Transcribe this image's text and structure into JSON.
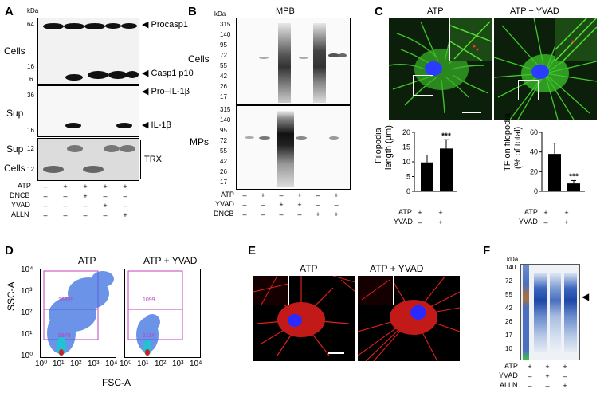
{
  "panels": {
    "A": {
      "letter": "A",
      "kda": "kDa",
      "row_labels": [
        "Cells",
        "Sup",
        "Sup",
        "Cells"
      ],
      "markers_top": [
        "64",
        "6",
        "16"
      ],
      "markers_mid": [
        "36",
        "16"
      ],
      "markers_bot": [
        "12",
        "12"
      ],
      "bands": [
        "Procasp1",
        "Casp1 p10",
        "Pro–IL-1β",
        "IL-1β",
        "TRX"
      ],
      "treatments": [
        "ATP",
        "DNCB",
        "YVAD",
        "ALLN"
      ],
      "signs": [
        [
          "–",
          "+",
          "+",
          "+",
          "+"
        ],
        [
          "–",
          "–",
          "+",
          "–",
          "–"
        ],
        [
          "–",
          "–",
          "–",
          "+",
          "–"
        ],
        [
          "–",
          "–",
          "–",
          "–",
          "+"
        ]
      ]
    },
    "B": {
      "letter": "B",
      "title": "MPB",
      "kda": "kDa",
      "row_labels": [
        "Cells",
        "MPs"
      ],
      "markers_cells": [
        "315",
        "140",
        "95",
        "72",
        "55",
        "42",
        "26",
        "17"
      ],
      "markers_mps": [
        "315",
        "140",
        "95",
        "72",
        "55",
        "42",
        "26",
        "17"
      ],
      "treatments": [
        "ATP",
        "YVAD",
        "DNCB"
      ],
      "signs": [
        [
          "–",
          "+",
          "–",
          "+",
          "–",
          "+"
        ],
        [
          "–",
          "–",
          "+",
          "+",
          "–",
          "–"
        ],
        [
          "–",
          "–",
          "–",
          "–",
          "+",
          "+"
        ]
      ]
    },
    "C": {
      "letter": "C",
      "image_titles": [
        "ATP",
        "ATP + YVAD"
      ],
      "charts": [
        {
          "ylabel_lines": [
            "Filopodia",
            "length (µm)"
          ],
          "ticks": [
            "0",
            "5",
            "10",
            "15",
            "20"
          ],
          "significance": "***",
          "treatments": [
            "ATP",
            "YVAD"
          ],
          "signs": [
            [
              "+",
              "+"
            ],
            [
              "–",
              "+"
            ]
          ]
        },
        {
          "ylabel_lines": [
            "TF on filopodia",
            "(% of total)"
          ],
          "ticks": [
            "0",
            "20",
            "40",
            "60"
          ],
          "significance": "***",
          "treatments": [
            "ATP",
            "YVAD"
          ],
          "signs": [
            [
              "+",
              "+"
            ],
            [
              "–",
              "+"
            ]
          ]
        }
      ]
    },
    "D": {
      "letter": "D",
      "plot_titles": [
        "ATP",
        "ATP + YVAD"
      ],
      "ylabel": "SSC-A",
      "xlabel": "FSC-A",
      "y_ticks": [
        "10⁴",
        "10³",
        "10²",
        "10¹",
        "10⁰"
      ],
      "x_ticks_1": [
        "10⁰",
        "10¹",
        "10²",
        "10³",
        "10⁴"
      ],
      "x_ticks_2": [
        "10⁰",
        "10¹",
        "10²",
        "10³",
        "10⁴"
      ],
      "gate_counts_atp": [
        "16939",
        "5978"
      ],
      "gate_counts_yvad": [
        "1099",
        "5114"
      ]
    },
    "E": {
      "letter": "E",
      "image_titles": [
        "ATP",
        "ATP + YVAD"
      ]
    },
    "F": {
      "letter": "F",
      "kda": "kDa",
      "markers": [
        "140",
        "72",
        "55",
        "42",
        "26",
        "17",
        "10"
      ],
      "treatments": [
        "ATP",
        "YVAD",
        "ALLN"
      ],
      "signs": [
        [
          "+",
          "+",
          "+"
        ],
        [
          "–",
          "+",
          "–"
        ],
        [
          "–",
          "–",
          "+"
        ]
      ]
    }
  },
  "chart_data": [
    {
      "type": "bar",
      "categories": [
        "ATP",
        "ATP + YVAD"
      ],
      "values": [
        9.8,
        14.5
      ],
      "errors": [
        2.5,
        3.0
      ],
      "ylabel": "Filopodia length (µm)",
      "ylim": [
        0,
        20
      ]
    },
    {
      "type": "bar",
      "categories": [
        "ATP",
        "ATP + YVAD"
      ],
      "values": [
        38,
        8
      ],
      "errors": [
        11,
        3
      ],
      "ylabel": "TF on filopodia (% of total)",
      "ylim": [
        0,
        60
      ]
    }
  ],
  "colors": {
    "actin_green": "#3fbf2a",
    "nucleus_blue": "#2a2aff",
    "actin_red": "#e0201c",
    "coomassie_blue": "#2f5fb8",
    "gate_magenta": "#c040c0",
    "flow_blue": "#3a6fe0"
  }
}
